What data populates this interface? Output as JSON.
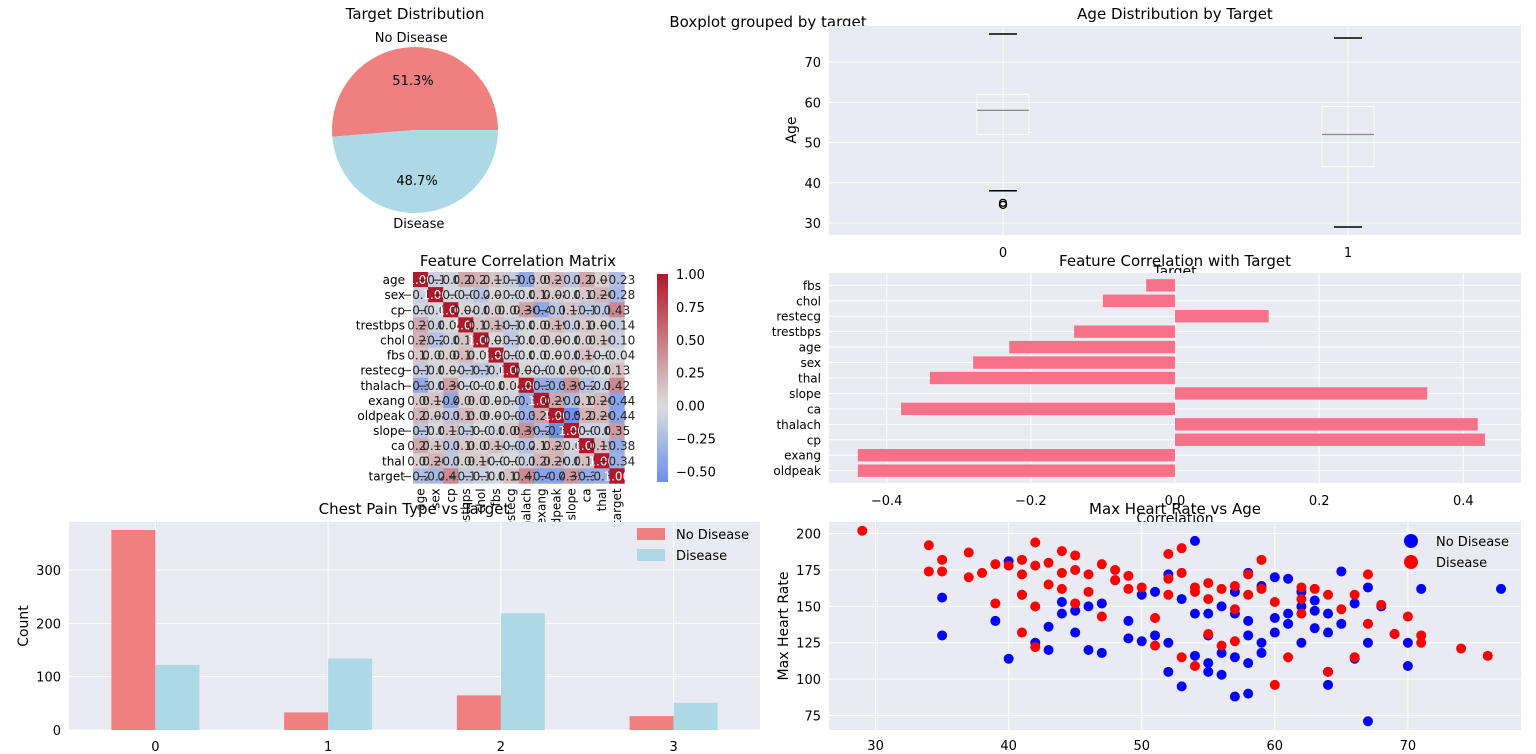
{
  "colors": {
    "no_disease": "#f08080",
    "disease": "#add8e6",
    "axes_bg": "#eaeaf2",
    "bar_corr": "#f77189",
    "scatter_no": "#0000ff",
    "scatter_yes": "#ff0000",
    "text": "#262626"
  },
  "suptitle": "Boxplot grouped by target",
  "chart_data": [
    {
      "type": "pie",
      "title": "Target Distribution",
      "labels": [
        "No Disease",
        "Disease"
      ],
      "values": [
        51.3,
        48.7
      ],
      "pct_labels": [
        "51.3%",
        "48.7%"
      ]
    },
    {
      "type": "box",
      "title": "Age Distribution by Target",
      "xlabel": "Target",
      "ylabel": "Age",
      "categories": [
        "0",
        "1"
      ],
      "ylim": [
        27,
        79
      ],
      "yticks": [
        30,
        40,
        50,
        60,
        70
      ],
      "boxes": [
        {
          "min": 38,
          "q1": 52,
          "median": 58,
          "q3": 62,
          "max": 77,
          "outliers": [
            35,
            34.5
          ]
        },
        {
          "min": 29,
          "q1": 44,
          "median": 52,
          "q3": 59,
          "max": 76,
          "outliers": []
        }
      ]
    },
    {
      "type": "heatmap",
      "title": "Feature Correlation Matrix",
      "labels": [
        "age",
        "sex",
        "cp",
        "trestbps",
        "chol",
        "fbs",
        "restecg",
        "thalach",
        "exang",
        "oldpeak",
        "slope",
        "ca",
        "thal",
        "target"
      ],
      "matrix": [
        [
          1.0,
          -0.1,
          -0.07,
          0.27,
          0.22,
          0.12,
          -0.13,
          -0.39,
          0.09,
          0.21,
          -0.17,
          0.27,
          0.07,
          -0.23
        ],
        [
          -0.1,
          1.0,
          -0.04,
          -0.08,
          -0.2,
          0.03,
          -0.06,
          -0.05,
          0.14,
          0.08,
          -0.03,
          0.11,
          0.2,
          -0.28
        ],
        [
          -0.07,
          -0.04,
          1.0,
          0.04,
          -0.08,
          0.08,
          0.04,
          0.3,
          -0.4,
          -0.17,
          0.13,
          -0.18,
          -0.16,
          0.43
        ],
        [
          0.27,
          -0.08,
          0.04,
          1.0,
          0.13,
          0.18,
          -0.12,
          -0.04,
          0.06,
          0.19,
          -0.12,
          0.1,
          0.06,
          -0.14
        ],
        [
          0.22,
          -0.2,
          -0.08,
          0.13,
          1.0,
          0.03,
          -0.15,
          -0.02,
          0.07,
          0.06,
          -0.01,
          0.07,
          0.1,
          -0.1
        ],
        [
          0.12,
          0.03,
          0.08,
          0.18,
          0.03,
          1.0,
          -0.08,
          -0.01,
          0.02,
          0.01,
          -0.06,
          0.14,
          -0.04,
          -0.04
        ],
        [
          -0.13,
          -0.06,
          0.04,
          -0.12,
          -0.15,
          -0.08,
          1.0,
          0.04,
          -0.07,
          -0.06,
          0.09,
          -0.07,
          -0.01,
          0.13
        ],
        [
          -0.39,
          -0.05,
          0.3,
          -0.04,
          -0.02,
          -0.01,
          0.04,
          1.0,
          -0.38,
          -0.35,
          0.39,
          -0.21,
          -0.1,
          0.42
        ],
        [
          0.09,
          0.14,
          -0.4,
          0.06,
          0.07,
          0.02,
          -0.07,
          -0.38,
          1.0,
          0.29,
          -0.27,
          0.11,
          0.2,
          -0.44
        ],
        [
          0.21,
          0.08,
          -0.17,
          0.19,
          0.06,
          0.01,
          -0.06,
          -0.35,
          0.29,
          1.0,
          -0.58,
          0.22,
          0.2,
          -0.44
        ],
        [
          -0.17,
          -0.03,
          0.13,
          -0.12,
          -0.01,
          -0.06,
          0.09,
          0.39,
          -0.27,
          -0.58,
          1.0,
          -0.07,
          -0.09,
          0.35
        ],
        [
          0.27,
          0.11,
          -0.18,
          0.1,
          0.07,
          0.14,
          -0.07,
          -0.21,
          0.11,
          0.22,
          -0.07,
          1.0,
          0.15,
          -0.38
        ],
        [
          0.07,
          0.2,
          -0.16,
          0.06,
          0.1,
          -0.04,
          -0.01,
          -0.1,
          0.2,
          0.2,
          -0.09,
          0.15,
          1.0,
          -0.34
        ],
        [
          -0.23,
          -0.28,
          0.43,
          -0.14,
          -0.1,
          -0.04,
          0.13,
          0.42,
          -0.44,
          -0.44,
          0.35,
          -0.38,
          -0.34,
          1.0
        ]
      ],
      "vmin": -0.58,
      "vmax": 1.0,
      "colorbar_ticks": [
        "1.00",
        "0.75",
        "0.50",
        "0.25",
        "0.00",
        "−0.25",
        "−0.50"
      ],
      "colorbar_values": [
        1.0,
        0.75,
        0.5,
        0.25,
        0.0,
        -0.25,
        -0.5
      ]
    },
    {
      "type": "bar",
      "orientation": "horizontal",
      "title": "Feature Correlation with Target",
      "xlabel": "Correlation",
      "categories": [
        "fbs",
        "chol",
        "restecg",
        "trestbps",
        "age",
        "sex",
        "thal",
        "slope",
        "ca",
        "thalach",
        "cp",
        "exang",
        "oldpeak"
      ],
      "values": [
        -0.04,
        -0.1,
        0.13,
        -0.14,
        -0.23,
        -0.28,
        -0.34,
        0.35,
        -0.38,
        0.42,
        0.43,
        -0.44,
        -0.44
      ],
      "xlim": [
        -0.48,
        0.48
      ],
      "xticks": [
        -0.4,
        -0.2,
        0.0,
        0.2,
        0.4
      ],
      "xtick_labels": [
        "−0.4",
        "−0.2",
        "0.0",
        "0.2",
        "0.4"
      ]
    },
    {
      "type": "bar",
      "title": "Chest Pain Type vs Target",
      "ylabel": "Count",
      "categories": [
        "0",
        "1",
        "2",
        "3"
      ],
      "ylim": [
        0,
        390
      ],
      "yticks": [
        0,
        100,
        200,
        300
      ],
      "series": [
        {
          "name": "No Disease",
          "values": [
            375,
            33,
            65,
            26
          ]
        },
        {
          "name": "Disease",
          "values": [
            122,
            134,
            219,
            51
          ]
        }
      ],
      "legend": "top-right"
    },
    {
      "type": "scatter",
      "title": "Max Heart Rate vs Age",
      "ylabel": "Max Heart Rate",
      "xlim": [
        26.5,
        78.5
      ],
      "ylim": [
        65,
        208
      ],
      "xticks": [
        30,
        40,
        50,
        60,
        70
      ],
      "yticks": [
        75,
        100,
        125,
        150,
        175,
        200
      ],
      "legend": "top-right",
      "series": [
        {
          "name": "No Disease",
          "points": [
            [
              35,
              156
            ],
            [
              35,
              130
            ],
            [
              39,
              140
            ],
            [
              40,
              114
            ],
            [
              40,
              181
            ],
            [
              41,
              158
            ],
            [
              42,
              125
            ],
            [
              43,
              120
            ],
            [
              43,
              136
            ],
            [
              44,
              145
            ],
            [
              44,
              153
            ],
            [
              45,
              147
            ],
            [
              45,
              132
            ],
            [
              46,
              150
            ],
            [
              46,
              120
            ],
            [
              47,
              118
            ],
            [
              47,
              152
            ],
            [
              48,
              168
            ],
            [
              49,
              128
            ],
            [
              49,
              140
            ],
            [
              50,
              158
            ],
            [
              50,
              126
            ],
            [
              51,
              160
            ],
            [
              51,
              130
            ],
            [
              52,
              172
            ],
            [
              52,
              125
            ],
            [
              53,
              95
            ],
            [
              53,
              155
            ],
            [
              54,
              145
            ],
            [
              54,
              195
            ],
            [
              54,
              116
            ],
            [
              55,
              111
            ],
            [
              55,
              130
            ],
            [
              55,
              145
            ],
            [
              56,
              150
            ],
            [
              56,
              103
            ],
            [
              57,
              88
            ],
            [
              57,
              115
            ],
            [
              57,
              160
            ],
            [
              58,
              90
            ],
            [
              58,
              111
            ],
            [
              58,
              130
            ],
            [
              58,
              140
            ],
            [
              59,
              125
            ],
            [
              59,
              164
            ],
            [
              60,
              132
            ],
            [
              60,
              142
            ],
            [
              61,
              169
            ],
            [
              61,
              145
            ],
            [
              62,
              150
            ],
            [
              62,
              160
            ],
            [
              62,
              125
            ],
            [
              63,
              147
            ],
            [
              63,
              154
            ],
            [
              64,
              105
            ],
            [
              64,
              96
            ],
            [
              64,
              132
            ],
            [
              65,
              174
            ],
            [
              65,
              138
            ],
            [
              66,
              152
            ],
            [
              66,
              114
            ],
            [
              67,
              71
            ],
            [
              67,
              125
            ],
            [
              67,
              163
            ],
            [
              68,
              150
            ],
            [
              69,
              131
            ],
            [
              70,
              109
            ],
            [
              70,
              125
            ],
            [
              71,
              162
            ],
            [
              77,
              162
            ],
            [
              52,
              105
            ],
            [
              55,
              105
            ],
            [
              56,
              118
            ],
            [
              57,
              145
            ],
            [
              58,
              173
            ],
            [
              59,
              118
            ],
            [
              61,
              138
            ],
            [
              63,
              135
            ],
            [
              64,
              145
            ],
            [
              60,
              170
            ]
          ]
        },
        {
          "name": "Disease",
          "points": [
            [
              29,
              202
            ],
            [
              34,
              174
            ],
            [
              34,
              192
            ],
            [
              35,
              174
            ],
            [
              35,
              182
            ],
            [
              37,
              170
            ],
            [
              37,
              187
            ],
            [
              38,
              173
            ],
            [
              39,
              152
            ],
            [
              39,
              179
            ],
            [
              40,
              178
            ],
            [
              41,
              158
            ],
            [
              41,
              182
            ],
            [
              41,
              172
            ],
            [
              41,
              132
            ],
            [
              42,
              194
            ],
            [
              42,
              178
            ],
            [
              42,
              150
            ],
            [
              42,
              122
            ],
            [
              43,
              165
            ],
            [
              43,
              180
            ],
            [
              44,
              188
            ],
            [
              44,
              173
            ],
            [
              44,
              162
            ],
            [
              45,
              152
            ],
            [
              45,
              175
            ],
            [
              45,
              185
            ],
            [
              46,
              160
            ],
            [
              46,
              172
            ],
            [
              47,
              143
            ],
            [
              47,
              179
            ],
            [
              48,
              168
            ],
            [
              48,
              175
            ],
            [
              49,
              171
            ],
            [
              49,
              162
            ],
            [
              50,
              163
            ],
            [
              51,
              123
            ],
            [
              51,
              142
            ],
            [
              52,
              169
            ],
            [
              52,
              158
            ],
            [
              53,
              115
            ],
            [
              53,
              173
            ],
            [
              54,
              160
            ],
            [
              54,
              163
            ],
            [
              54,
              109
            ],
            [
              55,
              131
            ],
            [
              55,
              155
            ],
            [
              56,
              162
            ],
            [
              56,
              123
            ],
            [
              57,
              126
            ],
            [
              57,
              164
            ],
            [
              58,
              172
            ],
            [
              59,
              162
            ],
            [
              59,
              182
            ],
            [
              60,
              96
            ],
            [
              60,
              153
            ],
            [
              61,
              115
            ],
            [
              62,
              163
            ],
            [
              62,
              145
            ],
            [
              63,
              162
            ],
            [
              64,
              105
            ],
            [
              64,
              158
            ],
            [
              65,
              148
            ],
            [
              66,
              115
            ],
            [
              67,
              138
            ],
            [
              67,
              172
            ],
            [
              68,
              151
            ],
            [
              69,
              131
            ],
            [
              70,
              143
            ],
            [
              71,
              130
            ],
            [
              71,
              125
            ],
            [
              74,
              121
            ],
            [
              76,
              116
            ],
            [
              52,
              186
            ],
            [
              53,
              190
            ],
            [
              55,
              166
            ],
            [
              57,
              148
            ],
            [
              58,
              158
            ],
            [
              62,
              155
            ],
            [
              66,
              158
            ]
          ]
        }
      ]
    }
  ]
}
